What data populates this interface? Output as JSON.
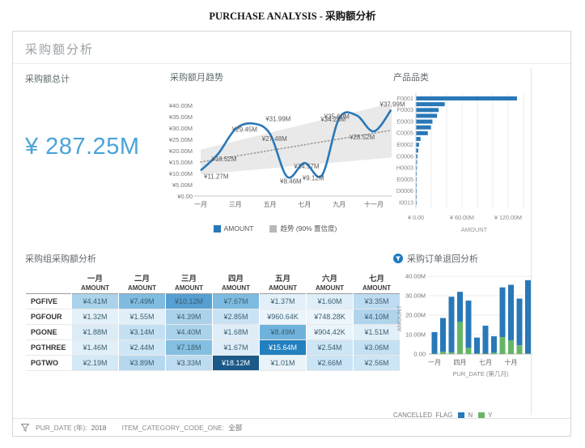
{
  "page": {
    "title": "PURCHASE ANALYSIS - 采购额分析"
  },
  "panel": {
    "header": "采购额分析"
  },
  "kpi": {
    "title": "采购额总计",
    "value": "¥ 287.25M"
  },
  "trend": {
    "title": "采购额月趋势",
    "legend": [
      {
        "label": "AMOUNT",
        "color": "#2978b8"
      },
      {
        "label": "趋势 (90% 置信度)",
        "color": "#b9b9b9"
      }
    ]
  },
  "category": {
    "title": "产品品类"
  },
  "table": {
    "title": "采购组采购额分析",
    "col_sub": "AMOUNT",
    "months": [
      "一月",
      "二月",
      "三月",
      "四月",
      "五月",
      "六月",
      "七月"
    ],
    "rows": [
      {
        "label": "PGFIVE",
        "cells": [
          {
            "t": "¥4.41M",
            "bg": "#abd2eb"
          },
          {
            "t": "¥7.49M",
            "bg": "#7fbce0"
          },
          {
            "t": "¥10.12M",
            "bg": "#569fd2"
          },
          {
            "t": "¥7.67M",
            "bg": "#7dbbe0"
          },
          {
            "t": "¥1.37M",
            "bg": "#e3f0f9"
          },
          {
            "t": "¥1.60M",
            "bg": "#dfeef8"
          },
          {
            "t": "¥3.35M",
            "bg": "#bedcf1"
          }
        ]
      },
      {
        "label": "PGFOUR",
        "cells": [
          {
            "t": "¥1.32M",
            "bg": "#e4f1f9"
          },
          {
            "t": "¥1.55M",
            "bg": "#e0eff8"
          },
          {
            "t": "¥4.39M",
            "bg": "#abd2eb"
          },
          {
            "t": "¥2.85M",
            "bg": "#c9e3f4"
          },
          {
            "t": "¥960.64K",
            "bg": "#eaf4fb"
          },
          {
            "t": "¥748.28K",
            "bg": "#ecf5fb"
          },
          {
            "t": "¥4.10M",
            "bg": "#b0d4ec"
          }
        ]
      },
      {
        "label": "PGONE",
        "cells": [
          {
            "t": "¥1.88M",
            "bg": "#dbecf7"
          },
          {
            "t": "¥3.14M",
            "bg": "#c3e0f3"
          },
          {
            "t": "¥4.40M",
            "bg": "#abd2eb"
          },
          {
            "t": "¥1.68M",
            "bg": "#deedf8"
          },
          {
            "t": "¥8.49M",
            "bg": "#6fb3dc"
          },
          {
            "t": "¥904.42K",
            "bg": "#eaf4fb"
          },
          {
            "t": "¥1.51M",
            "bg": "#e0eff8"
          }
        ]
      },
      {
        "label": "PGTHREE",
        "cells": [
          {
            "t": "¥1.46M",
            "bg": "#e1eff9"
          },
          {
            "t": "¥2.44M",
            "bg": "#cfe6f6"
          },
          {
            "t": "¥7.18M",
            "bg": "#84bfe1"
          },
          {
            "t": "¥1.67M",
            "bg": "#deedf8"
          },
          {
            "t": "¥15.64M",
            "bg": "#2280bf",
            "w": true
          },
          {
            "t": "¥2.54M",
            "bg": "#cde5f5"
          },
          {
            "t": "¥3.06M",
            "bg": "#c4e1f3"
          }
        ]
      },
      {
        "label": "PGTWO",
        "cells": [
          {
            "t": "¥2.19M",
            "bg": "#d4e9f6"
          },
          {
            "t": "¥3.89M",
            "bg": "#b5d8ee"
          },
          {
            "t": "¥3.33M",
            "bg": "#bedcf1"
          },
          {
            "t": "¥18.12M",
            "bg": "#1b5a88",
            "w": true
          },
          {
            "t": "¥1.01M",
            "bg": "#e8f3fa"
          },
          {
            "t": "¥2.66M",
            "bg": "#cbe4f5"
          },
          {
            "t": "¥2.56M",
            "bg": "#cde5f5"
          }
        ]
      }
    ]
  },
  "returns": {
    "title": "采购订单退回分析",
    "legend_label": "CANCELLED_FLAG"
  },
  "footer": {
    "filter1_label": "PUR_DATE (年):",
    "filter1_value": "2018",
    "filter2_label": "ITEM_CATEGORY_CODE_ONE:",
    "filter2_value": "全部"
  },
  "chart_data": [
    {
      "id": "monthly_trend",
      "type": "line",
      "title": "采购额月趋势",
      "x": [
        "一月",
        "二月",
        "三月",
        "四月",
        "五月",
        "六月",
        "七月",
        "八月",
        "九月",
        "十月",
        "十一月",
        "十二月"
      ],
      "series": [
        {
          "name": "AMOUNT",
          "values": [
            11.27,
            18.52,
            29.45,
            31.99,
            27.48,
            8.46,
            14.57,
            9.12,
            34.28,
            35.6,
            28.52,
            37.99
          ]
        }
      ],
      "data_labels": [
        "¥11.27M",
        "¥18.52M",
        "¥29.45M",
        "¥31.99M",
        "¥27.48M",
        "¥8.46M",
        "¥14.57M",
        "¥9.12M",
        "¥34.28M",
        "¥35.60M",
        "¥28.52M",
        "¥37.99M"
      ],
      "trend_band": {
        "name": "趋势 (90% 置信度)",
        "confidence": "90%",
        "trend_start": 15.0,
        "trend_end": 29.0,
        "band_start": [
          9.5,
          20.5
        ],
        "band_end": [
          17.0,
          41.0
        ]
      },
      "ylim": [
        0,
        40
      ],
      "yticks": [
        "¥40.00M",
        "¥35.00M",
        "¥30.00M",
        "¥25.00M",
        "¥20.00M",
        "¥15.00M",
        "¥10.00M",
        "¥5.00M",
        "¥0.00"
      ],
      "xticks_shown": [
        "一月",
        "三月",
        "五月",
        "七月",
        "九月",
        "十一月"
      ],
      "legend_position": "bottom"
    },
    {
      "id": "product_category",
      "type": "bar",
      "orientation": "horizontal",
      "title": "产品品类",
      "categories": [
        "F0001",
        "",
        "F0003",
        "",
        "E0003",
        "",
        "C0005",
        "",
        "E0002",
        "",
        "C0006",
        "",
        "H0003",
        "",
        "E0005",
        "",
        "D0006",
        "",
        "I0013"
      ],
      "values": [
        131,
        37,
        29,
        27,
        21,
        19,
        15,
        5.5,
        3.5,
        2.5,
        1.5,
        1,
        0.8,
        0.6,
        0.5,
        0.4,
        0.3,
        0.25,
        0.2
      ],
      "xlabel": "AMOUNT",
      "xticks": [
        "¥ 0.00",
        "¥ 60.00M",
        "¥ 120.00M"
      ],
      "xlim": [
        0,
        140
      ],
      "grid_step": 20
    },
    {
      "id": "order_returns",
      "type": "stacked-bar",
      "title": "采购订单退回分析",
      "x": [
        "一月",
        "二月",
        "三月",
        "四月",
        "五月",
        "六月",
        "七月",
        "八月",
        "九月",
        "十月",
        "十一月",
        "十二月"
      ],
      "series": [
        {
          "name": "N",
          "color": "#2978b8",
          "values": [
            11.07,
            17.32,
            28.65,
            15.49,
            24.28,
            8.16,
            14.37,
            8.42,
            25.58,
            28.6,
            24.02,
            37.69
          ]
        },
        {
          "name": "Y",
          "color": "#66b567",
          "values": [
            0.2,
            1.2,
            0.8,
            16.5,
            3.2,
            0.3,
            0.2,
            0.7,
            8.7,
            7.0,
            4.5,
            0.3
          ]
        }
      ],
      "stack_order_bottom_first": [
        "Y",
        "N"
      ],
      "ylabel": "AMOUNT",
      "xlabel": "PUR_DATE (第几月)",
      "yticks": [
        "40.00M",
        "30.00M",
        "20.00M",
        "10.00M",
        "0.00"
      ],
      "ylim": [
        0,
        40
      ],
      "xticks_shown": [
        "一月",
        "四月",
        "七月",
        "十月"
      ],
      "legend_label": "CANCELLED_FLAG"
    }
  ]
}
